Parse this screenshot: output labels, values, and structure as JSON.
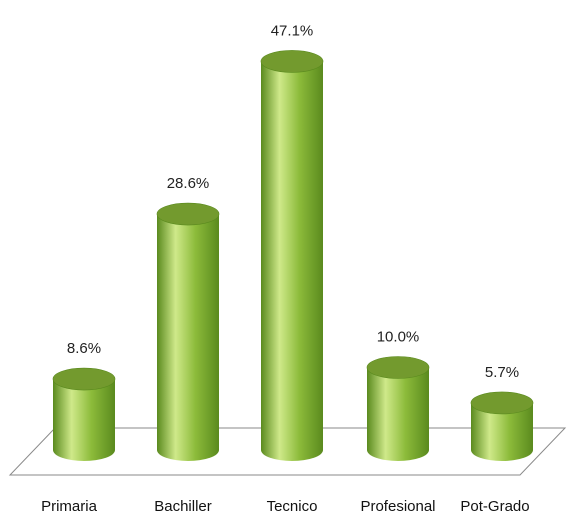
{
  "chart_data": {
    "type": "bar",
    "style": "3d-cylinder",
    "title": "",
    "xlabel": "",
    "ylabel": "",
    "categories": [
      "Primaria",
      "Bachiller",
      "Tecnico",
      "Profesional",
      "Pot-Grado"
    ],
    "values": [
      8.6,
      28.6,
      47.1,
      10.0,
      5.7
    ],
    "value_labels": [
      "8.6%",
      "28.6%",
      "47.1%",
      "10.0%",
      "5.7%"
    ],
    "unit": "%",
    "ylim": [
      0,
      50
    ],
    "grid": false,
    "legend": "none",
    "colors": {
      "bar_body": "#8cbb3a",
      "bar_highlight": "#cfe98a",
      "bar_shadow": "#5a8a1e",
      "bar_top": "#739a2e",
      "floor_stroke": "#8a8a8a",
      "floor_fill": "#ffffff"
    }
  }
}
